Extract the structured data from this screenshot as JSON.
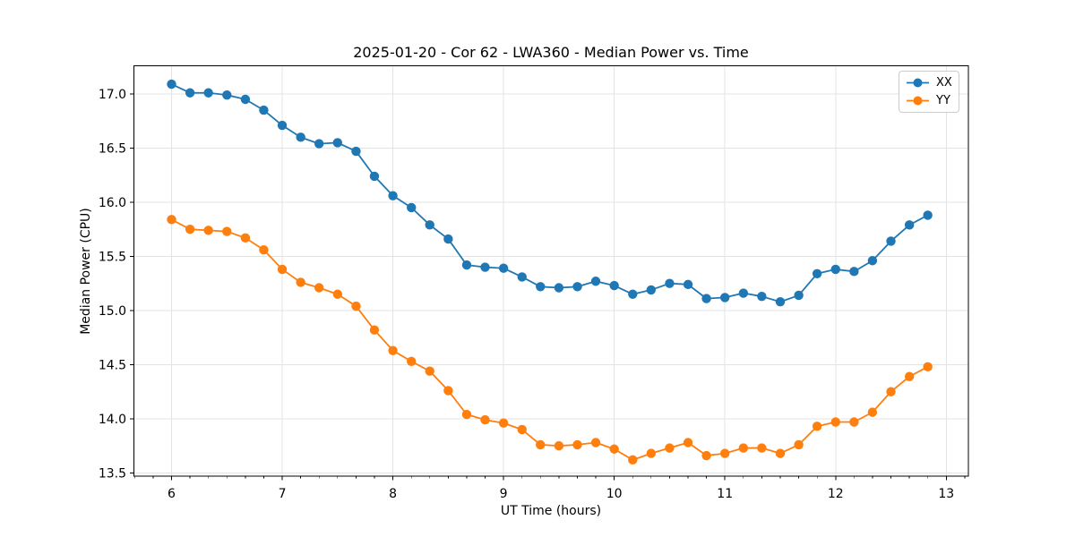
{
  "figure": {
    "background": "#ffffff",
    "axis_color": "#000000"
  },
  "chart_data": {
    "type": "line",
    "title": "2025-01-20 - Cor 62 - LWA360 - Median Power vs. Time",
    "xlabel": "UT Time (hours)",
    "ylabel": "Median Power (CPU)",
    "xlim": [
      5.66,
      13.2
    ],
    "ylim": [
      13.47,
      17.26
    ],
    "xticks": [
      6,
      7,
      8,
      9,
      10,
      11,
      12,
      13
    ],
    "yticks": [
      13.5,
      14.0,
      14.5,
      15.0,
      15.5,
      16.0,
      16.5,
      17.0
    ],
    "x_minor_tick_step": 0.1667,
    "grid": true,
    "grid_color": "#e3e3e3",
    "legend_position": "upper-right",
    "marker": "circle",
    "x": [
      6.0,
      6.167,
      6.333,
      6.5,
      6.667,
      6.833,
      7.0,
      7.167,
      7.333,
      7.5,
      7.667,
      7.833,
      8.0,
      8.167,
      8.333,
      8.5,
      8.667,
      8.833,
      9.0,
      9.167,
      9.333,
      9.5,
      9.667,
      9.833,
      10.0,
      10.167,
      10.333,
      10.5,
      10.667,
      10.833,
      11.0,
      11.167,
      11.333,
      11.5,
      11.667,
      11.833,
      12.0,
      12.167,
      12.333,
      12.5,
      12.667,
      12.833
    ],
    "series": [
      {
        "name": "XX",
        "color": "#1f77b4",
        "values": [
          17.09,
          17.01,
          17.01,
          16.99,
          16.95,
          16.85,
          16.71,
          16.6,
          16.54,
          16.55,
          16.47,
          16.24,
          16.06,
          15.95,
          15.79,
          15.66,
          15.42,
          15.4,
          15.39,
          15.31,
          15.22,
          15.21,
          15.22,
          15.27,
          15.23,
          15.15,
          15.19,
          15.25,
          15.24,
          15.11,
          15.12,
          15.16,
          15.13,
          15.08,
          15.14,
          15.34,
          15.38,
          15.36,
          15.46,
          15.64,
          15.79,
          15.88
        ]
      },
      {
        "name": "YY",
        "color": "#ff7f0e",
        "values": [
          15.84,
          15.75,
          15.74,
          15.73,
          15.67,
          15.56,
          15.38,
          15.26,
          15.21,
          15.15,
          15.04,
          14.82,
          14.63,
          14.53,
          14.44,
          14.26,
          14.04,
          13.99,
          13.96,
          13.9,
          13.76,
          13.75,
          13.76,
          13.78,
          13.72,
          13.62,
          13.68,
          13.73,
          13.78,
          13.66,
          13.68,
          13.73,
          13.73,
          13.68,
          13.76,
          13.93,
          13.97,
          13.97,
          14.06,
          14.25,
          14.39,
          14.48
        ]
      }
    ]
  }
}
